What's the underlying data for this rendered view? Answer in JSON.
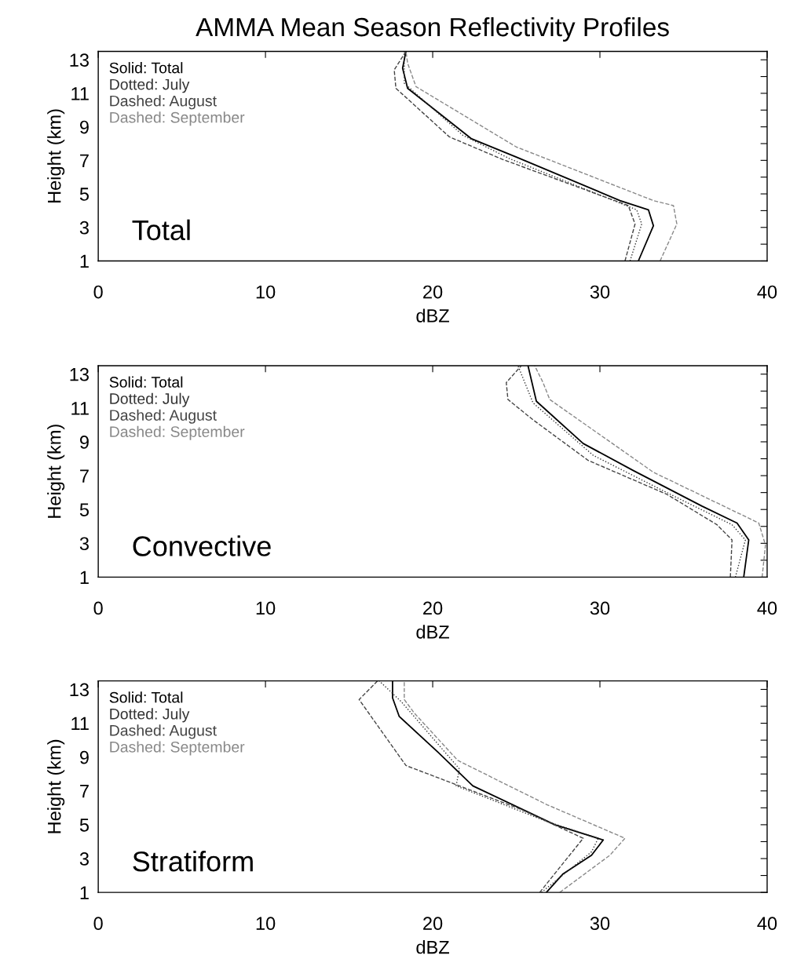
{
  "chart_data": [
    {
      "type": "line",
      "title": "AMMA Mean Season Reflectivity Profiles",
      "xlabel": "dBZ",
      "ylabel": "Height (km)",
      "annotations": [
        "Total"
      ],
      "legend": "top left",
      "grid": false,
      "marker": "none",
      "xlim": [
        0,
        40
      ],
      "xticks": [
        0,
        10,
        20,
        30,
        40
      ],
      "ylim": [
        1,
        13.5
      ],
      "yticks": [
        1,
        {
          "value": 2,
          "label": null
        },
        3,
        {
          "value": 4,
          "label": null
        },
        5,
        {
          "value": 6,
          "label": null
        },
        7,
        {
          "value": 8,
          "label": null
        },
        9,
        {
          "value": 10,
          "label": null
        },
        11,
        {
          "value": 12,
          "label": null
        },
        13
      ],
      "series": [
        {
          "name": "Solid: Total",
          "color": "#000000",
          "line_style": "solid",
          "x": [
            32.3,
            33.2,
            32.9,
            31.2,
            25.0,
            22.3,
            18.5,
            18.2,
            18.4
          ],
          "values": [
            1,
            3.1,
            4.05,
            4.6,
            7.2,
            8.3,
            11.3,
            12.5,
            13.5
          ]
        },
        {
          "name": "Dotted: July",
          "color": "#333333",
          "line_style": "dotted",
          "x": [
            31.8,
            32.5,
            32.2,
            24.6,
            21.8,
            18.3,
            18.3
          ],
          "values": [
            1,
            3.2,
            4.05,
            7.1,
            8.5,
            11.6,
            13.5
          ]
        },
        {
          "name": "Dashed: August",
          "color": "#444444",
          "line_style": "dashed",
          "x": [
            31.5,
            32.1,
            31.7,
            24.2,
            21.0,
            17.8,
            17.7,
            18.4
          ],
          "values": [
            1,
            3.2,
            4.3,
            7.05,
            8.4,
            11.3,
            12.4,
            13.5
          ]
        },
        {
          "name": "Dashed: September",
          "color": "#888888",
          "line_style": "dashed",
          "x": [
            33.6,
            34.6,
            34.4,
            33.2,
            25.0,
            19.0,
            18.5,
            18.4
          ],
          "values": [
            1,
            3.2,
            4.3,
            4.6,
            7.8,
            11.4,
            12.8,
            13.5
          ]
        }
      ]
    },
    {
      "type": "line",
      "xlabel": "dBZ",
      "ylabel": "Height (km)",
      "annotations": [
        "Convective"
      ],
      "legend": "top left",
      "grid": false,
      "marker": "none",
      "xlim": [
        0,
        40
      ],
      "xticks": [
        0,
        10,
        20,
        30,
        40
      ],
      "ylim": [
        1,
        13.5
      ],
      "yticks": [
        1,
        {
          "value": 2,
          "label": null
        },
        3,
        {
          "value": 4,
          "label": null
        },
        5,
        {
          "value": 6,
          "label": null
        },
        7,
        {
          "value": 8,
          "label": null
        },
        9,
        {
          "value": 10,
          "label": null
        },
        11,
        {
          "value": 12,
          "label": null
        },
        13
      ],
      "series": [
        {
          "name": "Solid: Total",
          "color": "#000000",
          "line_style": "solid",
          "x": [
            38.6,
            38.9,
            38.2,
            36.1,
            32.0,
            29.0,
            26.2,
            25.7
          ],
          "values": [
            1,
            3.2,
            4.2,
            5.2,
            7.3,
            8.9,
            11.4,
            13.5
          ]
        },
        {
          "name": "Dotted: July",
          "color": "#333333",
          "line_style": "dotted",
          "x": [
            38.1,
            38.7,
            37.9,
            34.0,
            29.6,
            26.0,
            25.1
          ],
          "values": [
            1,
            3.2,
            4.1,
            6.0,
            8.2,
            11.3,
            13.5
          ]
        },
        {
          "name": "Dashed: August",
          "color": "#444444",
          "line_style": "dashed",
          "x": [
            37.8,
            37.9,
            37.0,
            34.0,
            29.3,
            26.0,
            24.5,
            24.4,
            25.3
          ],
          "values": [
            1,
            3.2,
            4.1,
            5.9,
            7.9,
            10.3,
            11.5,
            12.5,
            13.5
          ]
        },
        {
          "name": "Dashed: September",
          "color": "#888888",
          "line_style": "dashed",
          "x": [
            39.7,
            39.9,
            39.5,
            33.2,
            27.0,
            26.6,
            26.1
          ],
          "values": [
            1,
            2.9,
            4.2,
            7.2,
            11.5,
            12.5,
            13.5
          ]
        }
      ]
    },
    {
      "type": "line",
      "xlabel": "dBZ",
      "ylabel": "Height (km)",
      "annotations": [
        "Stratiform"
      ],
      "legend": "top left",
      "grid": false,
      "marker": "none",
      "xlim": [
        0,
        40
      ],
      "xticks": [
        0,
        10,
        20,
        30,
        40
      ],
      "ylim": [
        1,
        13.5
      ],
      "yticks": [
        1,
        {
          "value": 2,
          "label": null
        },
        3,
        {
          "value": 4,
          "label": null
        },
        5,
        {
          "value": 6,
          "label": null
        },
        7,
        {
          "value": 8,
          "label": null
        },
        9,
        {
          "value": 10,
          "label": null
        },
        11,
        {
          "value": 12,
          "label": null
        },
        13
      ],
      "series": [
        {
          "name": "Solid: Total",
          "color": "#000000",
          "line_style": "solid",
          "x": [
            26.8,
            27.8,
            29.5,
            30.2,
            27.3,
            22.4,
            20.3,
            18.0,
            17.6,
            17.6
          ],
          "values": [
            1,
            2.1,
            3.2,
            4.1,
            5.0,
            7.3,
            9.3,
            11.4,
            12.5,
            13.5
          ]
        },
        {
          "name": "Dotted: July",
          "color": "#333333",
          "line_style": "dotted",
          "x": [
            26.5,
            29.5,
            29.9,
            26.8,
            21.4,
            21.6,
            18.1,
            16.8
          ],
          "values": [
            1,
            3.4,
            4.2,
            5.2,
            7.3,
            8.3,
            12.3,
            13.5
          ]
        },
        {
          "name": "Dashed: August",
          "color": "#444444",
          "line_style": "dashed",
          "x": [
            26.4,
            29.0,
            25.3,
            18.4,
            15.6,
            16.7
          ],
          "values": [
            1,
            4.2,
            5.9,
            8.5,
            12.4,
            13.5
          ]
        },
        {
          "name": "Dashed: September",
          "color": "#888888",
          "line_style": "dashed",
          "x": [
            27.6,
            30.6,
            31.5,
            26.8,
            21.5,
            18.9,
            18.3,
            18.3
          ],
          "values": [
            1,
            3.2,
            4.2,
            6.2,
            8.8,
            11.6,
            12.4,
            13.5
          ]
        }
      ]
    }
  ]
}
